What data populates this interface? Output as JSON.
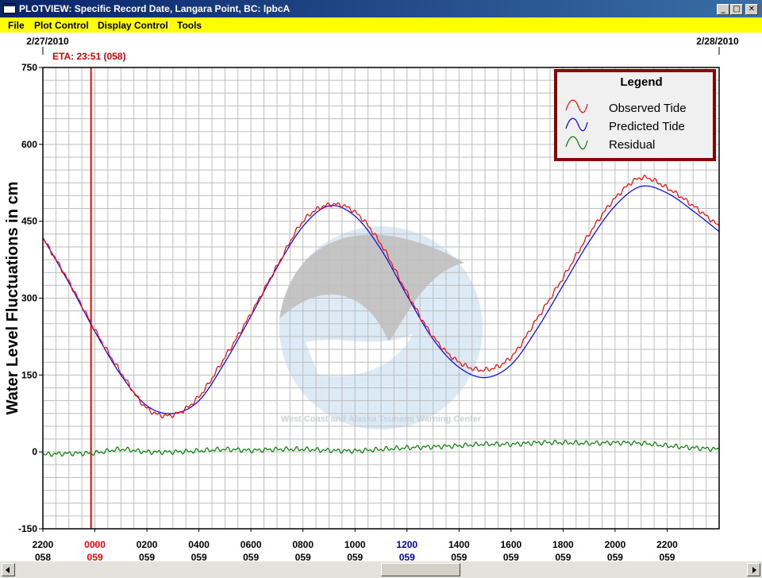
{
  "window": {
    "title": "PLOTVIEW: Specific Record Date, Langara Point, BC: lpbcA"
  },
  "menu": [
    "File",
    "Plot Control",
    "Display Control",
    "Tools"
  ],
  "dates": {
    "left": "2/27/2010",
    "right": "2/28/2010"
  },
  "eta": {
    "label": "ETA: 23:51 (058)",
    "hour": -0.15
  },
  "legend": {
    "title": "Legend",
    "items": [
      {
        "name": "Observed Tide",
        "color": "#ff0000"
      },
      {
        "name": "Predicted Tide",
        "color": "#0000ff"
      },
      {
        "name": "Residual",
        "color": "#008000"
      }
    ]
  },
  "watermark": "West Coast and Alaska Tsunami Warning Center",
  "chart_data": {
    "type": "line",
    "ylabel": "Water Level Fluctuations in cm",
    "ylim": [
      -150,
      750
    ],
    "yticks": [
      -150,
      0,
      150,
      300,
      450,
      600,
      750
    ],
    "xlim": [
      -2,
      24
    ],
    "x_ticks": [
      {
        "label": "2200",
        "day": "058",
        "color": "#000000"
      },
      {
        "label": "0000",
        "day": "059",
        "color": "#ff0000"
      },
      {
        "label": "0200",
        "day": "059",
        "color": "#000000"
      },
      {
        "label": "0400",
        "day": "059",
        "color": "#000000"
      },
      {
        "label": "0600",
        "day": "059",
        "color": "#000000"
      },
      {
        "label": "0800",
        "day": "059",
        "color": "#000000"
      },
      {
        "label": "1000",
        "day": "059",
        "color": "#000000"
      },
      {
        "label": "1200",
        "day": "059",
        "color": "#0000aa"
      },
      {
        "label": "1400",
        "day": "059",
        "color": "#000000"
      },
      {
        "label": "1600",
        "day": "059",
        "color": "#000000"
      },
      {
        "label": "1800",
        "day": "059",
        "color": "#000000"
      },
      {
        "label": "2000",
        "day": "059",
        "color": "#000000"
      },
      {
        "label": "2200",
        "day": "059",
        "color": "#000000"
      }
    ],
    "series": [
      {
        "name": "Predicted Tide",
        "x": [
          -2,
          -1,
          0,
          1,
          2,
          3,
          4,
          5,
          6,
          7,
          8,
          9,
          10,
          11,
          12,
          13,
          14,
          15,
          16,
          17,
          18,
          19,
          20,
          21,
          22,
          23,
          24
        ],
        "y": [
          418,
          330,
          235,
          150,
          90,
          75,
          100,
          175,
          265,
          360,
          440,
          480,
          460,
          395,
          305,
          220,
          165,
          145,
          170,
          240,
          325,
          410,
          480,
          518,
          505,
          470,
          430
        ]
      },
      {
        "name": "Observed Tide",
        "x": [
          -2,
          -1,
          0,
          1,
          2,
          3,
          4,
          5,
          6,
          7,
          8,
          9,
          10,
          11,
          12,
          13,
          14,
          15,
          16,
          17,
          18,
          19,
          20,
          21,
          22,
          23,
          24
        ],
        "y": [
          418,
          332,
          238,
          155,
          85,
          72,
          108,
          185,
          270,
          362,
          450,
          482,
          468,
          405,
          310,
          225,
          175,
          160,
          185,
          260,
          340,
          425,
          495,
          535,
          515,
          480,
          440
        ]
      },
      {
        "name": "Residual",
        "x": [
          -2,
          -1,
          0,
          1,
          2,
          3,
          4,
          5,
          6,
          7,
          8,
          9,
          10,
          11,
          12,
          13,
          14,
          15,
          16,
          17,
          18,
          19,
          20,
          21,
          22,
          23,
          24
        ],
        "y": [
          -5,
          -3,
          -2,
          5,
          0,
          0,
          2,
          5,
          3,
          5,
          5,
          3,
          2,
          5,
          8,
          10,
          12,
          15,
          15,
          18,
          18,
          17,
          18,
          17,
          12,
          8,
          5
        ]
      }
    ]
  }
}
